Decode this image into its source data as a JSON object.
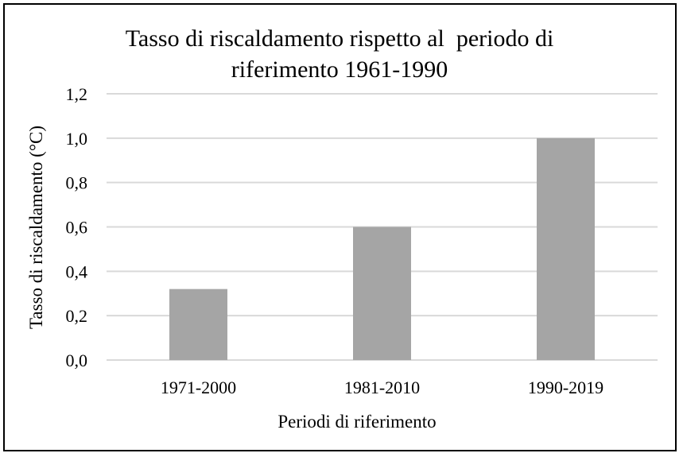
{
  "chart_data": {
    "type": "bar",
    "title_lines": [
      "Tasso di riscaldamento rispetto al  periodo di",
      "riferimento 1961-1990"
    ],
    "categories": [
      "1971-2000",
      "1981-2010",
      "1990-2019"
    ],
    "values": [
      0.32,
      0.6,
      1.0
    ],
    "xlabel": "Periodi di riferimento",
    "ylabel": "Tasso di riscaldamento (°C)",
    "ylim": [
      0,
      1.2
    ],
    "yticks": [
      "0,0",
      "0,2",
      "0,4",
      "0,6",
      "0,8",
      "1,0",
      "1,2"
    ],
    "grid": true,
    "legend": "none",
    "bar_color": "#a5a5a5",
    "grid_color": "#d9d9d9"
  }
}
